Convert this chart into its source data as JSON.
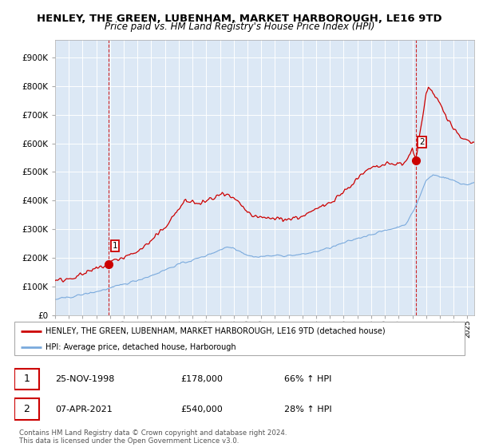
{
  "title": "HENLEY, THE GREEN, LUBENHAM, MARKET HARBOROUGH, LE16 9TD",
  "subtitle": "Price paid vs. HM Land Registry's House Price Index (HPI)",
  "ytick_values": [
    0,
    100000,
    200000,
    300000,
    400000,
    500000,
    600000,
    700000,
    800000,
    900000
  ],
  "ylim": [
    0,
    960000
  ],
  "xlim_start": 1995.0,
  "xlim_end": 2025.5,
  "red_line_color": "#cc0000",
  "blue_line_color": "#7aaadd",
  "background_color": "#dce8f5",
  "grid_color": "#ffffff",
  "legend_label_red": "HENLEY, THE GREEN, LUBENHAM, MARKET HARBOROUGH, LE16 9TD (detached house)",
  "legend_label_blue": "HPI: Average price, detached house, Harborough",
  "point1_x": 1998.917,
  "point1_y": 178000,
  "point2_x": 2021.27,
  "point2_y": 540000,
  "point1_date": "25-NOV-1998",
  "point1_price": "£178,000",
  "point1_hpi": "66% ↑ HPI",
  "point2_date": "07-APR-2021",
  "point2_price": "£540,000",
  "point2_hpi": "28% ↑ HPI",
  "footer": "Contains HM Land Registry data © Crown copyright and database right 2024.\nThis data is licensed under the Open Government Licence v3.0.",
  "title_fontsize": 9.5,
  "subtitle_fontsize": 8.5
}
